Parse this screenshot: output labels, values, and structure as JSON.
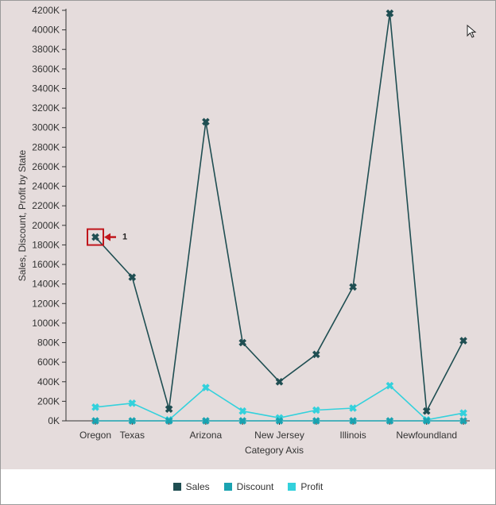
{
  "chart_data": {
    "type": "line",
    "title": "",
    "xlabel": "Category Axis",
    "ylabel": "Sales, Discount, Profit by State",
    "ylim": [
      0,
      4200000
    ],
    "yticks": [
      "0K",
      "200K",
      "400K",
      "600K",
      "800K",
      "1000K",
      "1200K",
      "1400K",
      "1600K",
      "1800K",
      "2000K",
      "2200K",
      "2400K",
      "2600K",
      "2800K",
      "3000K",
      "3200K",
      "3400K",
      "3600K",
      "3800K",
      "4000K",
      "4200K"
    ],
    "categories": [
      "Oregon",
      "Texas",
      "",
      "Arizona",
      "",
      "New Jersey",
      "",
      "Illinois",
      "",
      "Newfoundland",
      ""
    ],
    "series": [
      {
        "name": "Sales",
        "color": "#1f4e52",
        "values": [
          1880000,
          1470000,
          120000,
          3060000,
          800000,
          400000,
          680000,
          1370000,
          4170000,
          100000,
          820000
        ]
      },
      {
        "name": "Discount",
        "color": "#1aa3b1",
        "values": [
          0,
          0,
          0,
          0,
          0,
          0,
          0,
          0,
          0,
          0,
          0
        ]
      },
      {
        "name": "Profit",
        "color": "#33d1dc",
        "values": [
          140000,
          180000,
          10000,
          340000,
          100000,
          30000,
          110000,
          130000,
          360000,
          10000,
          80000
        ]
      }
    ],
    "legend_position": "bottom",
    "grid": false,
    "annotation": {
      "label": "1",
      "series": "Sales",
      "index": 0
    }
  }
}
